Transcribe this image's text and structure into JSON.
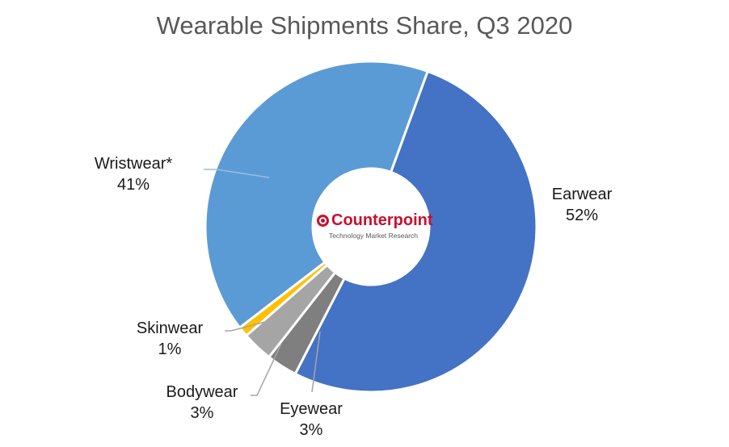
{
  "chart_data": {
    "type": "pie",
    "title": "Wearable Shipments Share, Q3 2020",
    "donut": true,
    "categories": [
      "Earwear",
      "Eyewear",
      "Bodywear",
      "Skinwear",
      "Wristwear*"
    ],
    "values": [
      52,
      3,
      3,
      1,
      41
    ],
    "value_labels": [
      "52%",
      "3%",
      "3%",
      "1%",
      "41%"
    ],
    "colors": [
      "#4472c4",
      "#7f7f7f",
      "#a5a5a5",
      "#ffc000",
      "#5b9bd5"
    ],
    "label_positions": [
      "right",
      "bottom",
      "bottom-left",
      "left",
      "left"
    ]
  },
  "logo": {
    "name": "Counterpoint",
    "tagline": "Technology Market Research"
  }
}
